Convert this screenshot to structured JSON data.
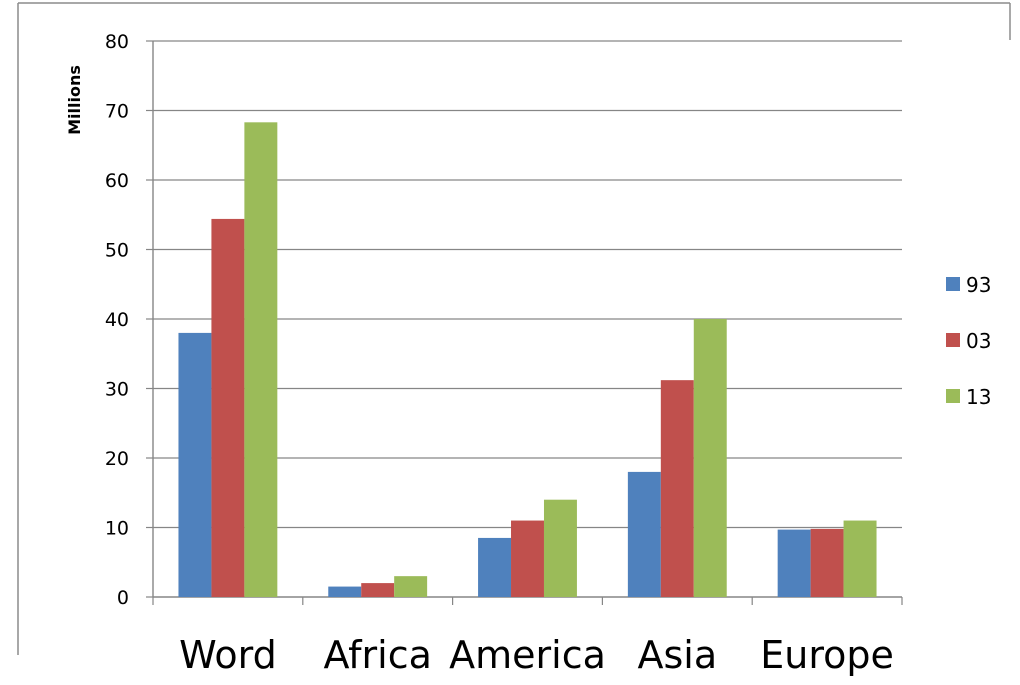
{
  "chart_data": {
    "type": "bar",
    "title": "",
    "xlabel": "",
    "ylabel": "Millions",
    "ylim": [
      0,
      80
    ],
    "yticks": [
      0,
      10,
      20,
      30,
      40,
      50,
      60,
      70,
      80
    ],
    "grid": true,
    "legend_position": "right",
    "categories": [
      "Word",
      "Africa",
      "America",
      "Asia",
      "Europe"
    ],
    "series": [
      {
        "name": "93",
        "color": "#4f81bd",
        "values": [
          38,
          1.5,
          8.5,
          18,
          9.7
        ]
      },
      {
        "name": "03",
        "color": "#c0504d",
        "values": [
          54.4,
          2,
          11,
          31.2,
          9.8
        ]
      },
      {
        "name": "13",
        "color": "#9bbb59",
        "values": [
          68.3,
          3,
          14,
          40,
          11
        ]
      }
    ]
  }
}
